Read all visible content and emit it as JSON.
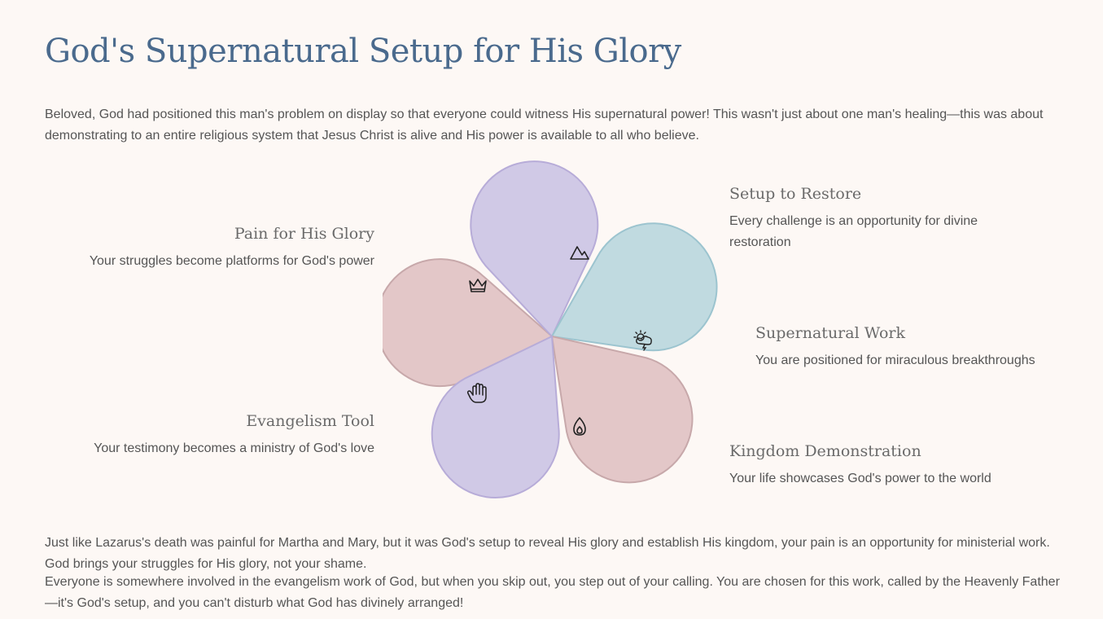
{
  "title": "God's Supernatural Setup for His Glory",
  "intro": "Beloved, God had positioned this man's problem on display so that everyone could witness His supernatural power! This wasn't just about one man's healing—this was about demonstrating to an entire religious system that Jesus Christ is alive and His power is available to all who believe.",
  "items": [
    {
      "title": "Pain for His Glory",
      "text": "Your struggles become platforms for God's power",
      "icon": "crown-icon",
      "color": "#e3c7c8"
    },
    {
      "title": "Setup to Restore",
      "text": "Every challenge is an opportunity for divine restoration",
      "icon": "mountain-icon",
      "color": "#d0c9e6"
    },
    {
      "title": "Supernatural Work",
      "text": "You are positioned for miraculous breakthroughs",
      "icon": "sun-storm-icon",
      "color": "#c0dae0"
    },
    {
      "title": "Kingdom Demonstration",
      "text": "Your life showcases God's power to the world",
      "icon": "flame-icon",
      "color": "#e3c7c8"
    },
    {
      "title": "Evangelism Tool",
      "text": "Your testimony becomes a ministry of God's love",
      "icon": "hand-icon",
      "color": "#d0c9e6"
    }
  ],
  "outro": [
    "Just like Lazarus's death was painful for Martha and Mary, but it was God's setup to reveal His glory and establish His kingdom, your pain is an opportunity for ministerial work. God brings your struggles for His glory, not your shame.",
    "Everyone is somewhere involved in the evangelism work of God, but when you skip out, you step out of your calling. You are chosen for this work, called by the Heavenly Father—it's God's setup, and you can't disturb what God has divinely arranged!"
  ]
}
